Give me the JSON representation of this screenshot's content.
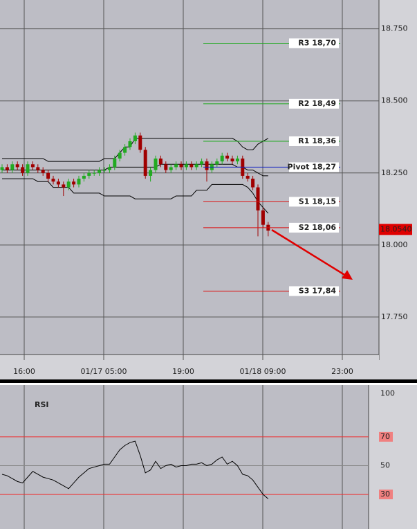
{
  "chart_data": [
    {
      "type": "candlestick",
      "ylim": [
        17.62,
        18.85
      ],
      "yticks": [
        {
          "value": 18.75,
          "label": "18.750"
        },
        {
          "value": 18.5,
          "label": "18.500"
        },
        {
          "value": 18.25,
          "label": "18.250"
        },
        {
          "value": 18,
          "label": "18.000"
        },
        {
          "value": 17.75,
          "label": "17.750"
        }
      ],
      "x_labels": [
        "16:00",
        "01/17 05:00",
        "19:00",
        "01/18 09:00",
        "23:00"
      ],
      "up_color": "#22aa22",
      "down_color": "#a00000",
      "open": [
        18.26,
        18.27,
        18.26,
        18.28,
        18.27,
        18.25,
        18.28,
        18.27,
        18.26,
        18.25,
        18.23,
        18.22,
        18.21,
        18.2,
        18.22,
        18.21,
        18.23,
        18.24,
        18.25,
        18.25,
        18.26,
        18.26,
        18.27,
        18.3,
        18.32,
        18.34,
        18.36,
        18.38,
        18.33,
        18.24,
        18.26,
        18.3,
        18.28,
        18.26,
        18.27,
        18.28,
        18.27,
        18.28,
        18.27,
        18.28,
        18.29,
        18.26,
        18.28,
        18.29,
        18.31,
        18.3,
        18.29,
        18.3,
        18.24,
        18.23,
        18.2,
        18.12,
        18.07
      ],
      "high": [
        18.28,
        18.28,
        18.29,
        18.29,
        18.28,
        18.29,
        18.29,
        18.28,
        18.27,
        18.26,
        18.24,
        18.23,
        18.22,
        18.23,
        18.23,
        18.24,
        18.25,
        18.26,
        18.26,
        18.27,
        18.27,
        18.28,
        18.31,
        18.33,
        18.35,
        18.37,
        18.39,
        18.39,
        18.34,
        18.27,
        18.31,
        18.31,
        18.29,
        18.28,
        18.29,
        18.29,
        18.29,
        18.29,
        18.29,
        18.3,
        18.3,
        18.29,
        18.3,
        18.32,
        18.32,
        18.31,
        18.31,
        18.31,
        18.25,
        18.24,
        18.21,
        18.13,
        18.08
      ],
      "low": [
        18.25,
        18.25,
        18.25,
        18.26,
        18.24,
        18.24,
        18.26,
        18.25,
        18.24,
        18.22,
        18.21,
        18.2,
        18.17,
        18.19,
        18.2,
        18.2,
        18.22,
        18.23,
        18.24,
        18.24,
        18.25,
        18.25,
        18.26,
        18.29,
        18.31,
        18.33,
        18.35,
        18.32,
        18.23,
        18.22,
        18.25,
        18.27,
        18.25,
        18.25,
        18.26,
        18.26,
        18.26,
        18.26,
        18.26,
        18.27,
        18.22,
        18.25,
        18.27,
        18.28,
        18.29,
        18.28,
        18.28,
        18.23,
        18.22,
        18.19,
        18.03,
        18.06,
        18.03
      ],
      "close": [
        18.27,
        18.26,
        18.28,
        18.27,
        18.25,
        18.28,
        18.27,
        18.26,
        18.25,
        18.23,
        18.22,
        18.21,
        18.2,
        18.22,
        18.21,
        18.23,
        18.24,
        18.25,
        18.25,
        18.26,
        18.26,
        18.27,
        18.3,
        18.32,
        18.34,
        18.36,
        18.38,
        18.33,
        18.24,
        18.26,
        18.3,
        18.28,
        18.26,
        18.27,
        18.28,
        18.27,
        18.28,
        18.27,
        18.28,
        18.29,
        18.26,
        18.28,
        18.29,
        18.31,
        18.3,
        18.29,
        18.3,
        18.24,
        18.23,
        18.2,
        18.12,
        18.07,
        18.05
      ],
      "lines": [
        {
          "color": "#000000",
          "values": [
            18.3,
            18.3,
            18.3,
            18.3,
            18.3,
            18.3,
            18.3,
            18.3,
            18.3,
            18.29,
            18.29,
            18.29,
            18.29,
            18.29,
            18.29,
            18.29,
            18.29,
            18.29,
            18.29,
            18.29,
            18.3,
            18.3,
            18.3,
            18.32,
            18.34,
            18.34,
            18.37,
            18.37,
            18.37,
            18.37,
            18.37,
            18.37,
            18.37,
            18.37,
            18.37,
            18.37,
            18.37,
            18.37,
            18.37,
            18.37,
            18.37,
            18.37,
            18.37,
            18.37,
            18.37,
            18.37,
            18.36,
            18.34,
            18.33,
            18.33,
            18.35,
            18.36,
            18.37
          ]
        },
        {
          "color": "#000000",
          "values": [
            18.26,
            18.26,
            18.26,
            18.26,
            18.26,
            18.26,
            18.26,
            18.26,
            18.26,
            18.26,
            18.26,
            18.26,
            18.26,
            18.26,
            18.26,
            18.26,
            18.26,
            18.26,
            18.26,
            18.26,
            18.26,
            18.27,
            18.27,
            18.27,
            18.27,
            18.27,
            18.27,
            18.27,
            18.27,
            18.27,
            18.27,
            18.28,
            18.28,
            18.28,
            18.28,
            18.28,
            18.28,
            18.28,
            18.28,
            18.28,
            18.28,
            18.28,
            18.28,
            18.28,
            18.28,
            18.28,
            18.27,
            18.27,
            18.26,
            18.26,
            18.25,
            18.24,
            18.24
          ]
        },
        {
          "color": "#000000",
          "values": [
            18.23,
            18.23,
            18.23,
            18.23,
            18.23,
            18.23,
            18.23,
            18.22,
            18.22,
            18.22,
            18.2,
            18.2,
            18.2,
            18.2,
            18.18,
            18.18,
            18.18,
            18.18,
            18.18,
            18.18,
            18.17,
            18.17,
            18.17,
            18.17,
            18.17,
            18.17,
            18.16,
            18.16,
            18.16,
            18.16,
            18.16,
            18.16,
            18.16,
            18.16,
            18.17,
            18.17,
            18.17,
            18.17,
            18.19,
            18.19,
            18.19,
            18.21,
            18.21,
            18.21,
            18.21,
            18.21,
            18.21,
            18.21,
            18.2,
            18.18,
            18.15,
            18.13,
            18.11
          ]
        }
      ],
      "levels": [
        {
          "label": "R3 18,70",
          "value": 18.7,
          "color": "#22aa22"
        },
        {
          "label": "R2 18,49",
          "value": 18.49,
          "color": "#22aa22"
        },
        {
          "label": "R1 18,36",
          "value": 18.36,
          "color": "#22aa22"
        },
        {
          "label": "Pivot 18,27",
          "value": 18.27,
          "color": "#1020c0"
        },
        {
          "label": "S1 18,15",
          "value": 18.15,
          "color": "#dd1010"
        },
        {
          "label": "S2 18,06",
          "value": 18.06,
          "color": "#dd1010"
        },
        {
          "label": "S3 17,84",
          "value": 17.84,
          "color": "#dd1010"
        }
      ],
      "last_price": {
        "value": 18.054,
        "label": "18.0540"
      }
    },
    {
      "type": "line",
      "title": "RSI",
      "ylim": [
        6,
        106
      ],
      "yticks": [
        100,
        70,
        50,
        30
      ],
      "color": "#000000",
      "values": [
        44,
        43,
        41,
        39,
        38,
        42,
        46,
        44,
        42,
        41,
        40,
        38,
        36,
        34,
        38,
        42,
        45,
        48,
        49,
        50,
        51,
        51,
        56,
        61,
        64,
        66,
        67,
        57,
        45,
        47,
        53,
        48,
        50,
        51,
        49,
        50,
        50,
        51,
        51,
        52,
        50,
        51,
        54,
        56,
        51,
        53,
        50,
        44,
        43,
        40,
        35,
        30,
        27
      ]
    }
  ]
}
